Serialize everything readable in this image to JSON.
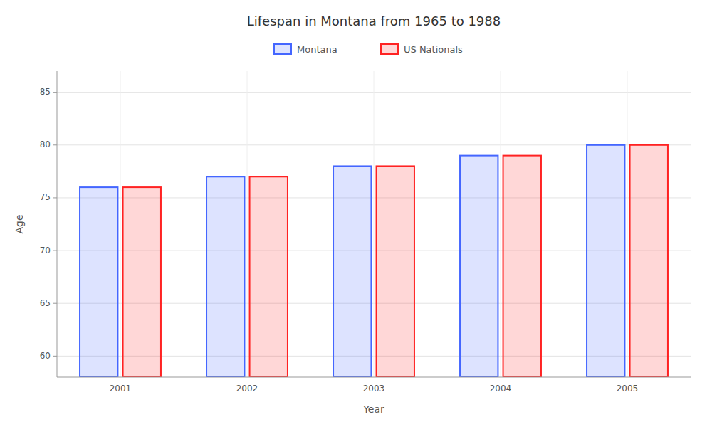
{
  "chart_data": {
    "type": "bar",
    "title": "Lifespan in Montana from 1965 to 1988",
    "xlabel": "Year",
    "ylabel": "Age",
    "categories": [
      "2001",
      "2002",
      "2003",
      "2004",
      "2005"
    ],
    "series": [
      {
        "name": "Montana",
        "color": "#4466ff",
        "values": [
          76,
          77,
          78,
          79,
          80
        ]
      },
      {
        "name": "US Nationals",
        "color": "#ff2222",
        "values": [
          76,
          77,
          78,
          79,
          80
        ]
      }
    ],
    "ylim": [
      58,
      87
    ],
    "yticks": [
      60,
      65,
      70,
      75,
      80,
      85
    ],
    "grid": true,
    "legend": "top"
  }
}
